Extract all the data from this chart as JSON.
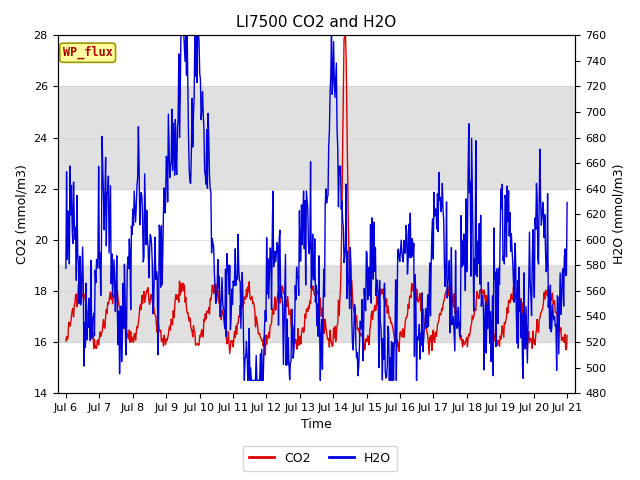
{
  "title": "LI7500 CO2 and H2O",
  "xlabel": "Time",
  "ylabel_left": "CO2 (mmol/m3)",
  "ylabel_right": "H2O (mmol/m3)",
  "annotation": "WP_flux",
  "ylim_left": [
    14,
    28
  ],
  "ylim_right": [
    480,
    760
  ],
  "yticks_left": [
    14,
    16,
    18,
    20,
    22,
    24,
    26,
    28
  ],
  "yticks_right": [
    480,
    500,
    520,
    540,
    560,
    580,
    600,
    620,
    640,
    660,
    680,
    700,
    720,
    740,
    760
  ],
  "xlim": [
    5.75,
    21.25
  ],
  "xtick_labels": [
    "Jul 6",
    "Jul 7",
    "Jul 8",
    "Jul 9",
    "Jul 10",
    "Jul 11",
    "Jul 12",
    "Jul 13",
    "Jul 14",
    "Jul 15",
    "Jul 16",
    "Jul 17",
    "Jul 18",
    "Jul 19",
    "Jul 20",
    "Jul 21"
  ],
  "xtick_positions": [
    6,
    7,
    8,
    9,
    10,
    11,
    12,
    13,
    14,
    15,
    16,
    17,
    18,
    19,
    20,
    21
  ],
  "co2_color": "#dd0000",
  "h2o_color": "#0000dd",
  "band_color": "#e0e0e0",
  "band1_ymin": 22,
  "band1_ymax": 26,
  "band2_ymin": 16,
  "band2_ymax": 19,
  "legend_co2": "CO2",
  "legend_h2o": "H2O",
  "title_fontsize": 11,
  "axis_label_fontsize": 9,
  "tick_fontsize": 8,
  "linewidth": 1.0
}
